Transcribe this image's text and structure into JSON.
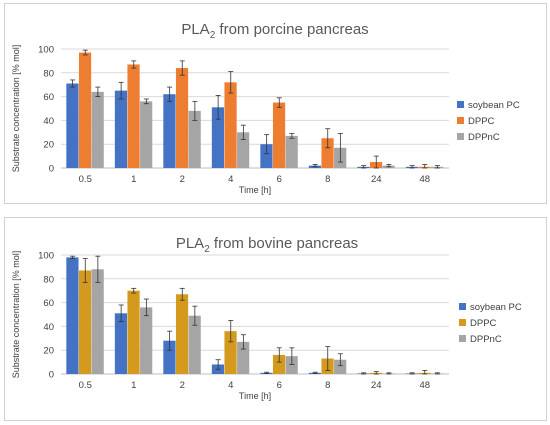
{
  "chart_data": [
    {
      "type": "bar",
      "title_main": "PLA",
      "title_sub": "2",
      "title_rest": " from porcine pancreas",
      "categories": [
        "0.5",
        "1",
        "2",
        "4",
        "6",
        "8",
        "24",
        "48"
      ],
      "xlabel": "Time [h]",
      "ylabel": "Substrate concentration [% mol]",
      "ylim": [
        0,
        100
      ],
      "yticks": [
        "0",
        "20",
        "40",
        "60",
        "80",
        "100"
      ],
      "grid": true,
      "legend_position": "right",
      "series": [
        {
          "name": "soybean PC",
          "color": "#4472c4",
          "values": [
            71,
            65,
            62,
            51,
            20,
            2,
            1,
            1
          ],
          "errors": [
            3,
            7,
            6,
            10,
            8,
            1,
            1,
            1
          ]
        },
        {
          "name": "DPPC",
          "color": "#ed7d31",
          "values": [
            97,
            87,
            84,
            72,
            55,
            25,
            5,
            1
          ],
          "errors": [
            2,
            3,
            6,
            9,
            4,
            8,
            5,
            2
          ]
        },
        {
          "name": "DPPnC",
          "color": "#a5a5a5",
          "values": [
            64,
            56,
            48,
            30,
            27,
            17,
            2,
            1
          ],
          "errors": [
            4,
            2,
            8,
            6,
            2,
            12,
            1,
            1
          ]
        }
      ]
    },
    {
      "type": "bar",
      "title_main": "PLA",
      "title_sub": "2",
      "title_rest": " from bovine pancreas",
      "categories": [
        "0.5",
        "1",
        "2",
        "4",
        "6",
        "8",
        "24",
        "48"
      ],
      "xlabel": "Time [h]",
      "ylabel": "Substrate concentration [% mol]",
      "ylim": [
        0,
        100
      ],
      "yticks": [
        "0",
        "20",
        "40",
        "60",
        "80",
        "100"
      ],
      "grid": true,
      "legend_position": "right",
      "series": [
        {
          "name": "soybean PC",
          "color": "#4472c4",
          "values": [
            98,
            51,
            28,
            8,
            1,
            1,
            0.5,
            0.5
          ],
          "errors": [
            1,
            7,
            8,
            4,
            0.5,
            0.5,
            0.5,
            0.5
          ]
        },
        {
          "name": "DPPC",
          "color": "#d49a1e",
          "values": [
            87,
            70,
            67,
            36,
            16,
            13,
            1,
            1
          ],
          "errors": [
            10,
            2,
            5,
            9,
            6,
            10,
            1,
            2
          ]
        },
        {
          "name": "DPPnC",
          "color": "#a5a5a5",
          "values": [
            88,
            56,
            49,
            27,
            15,
            12,
            0.5,
            0.5
          ],
          "errors": [
            11,
            7,
            8,
            6,
            7,
            5,
            0.5,
            0.5
          ]
        }
      ]
    }
  ]
}
